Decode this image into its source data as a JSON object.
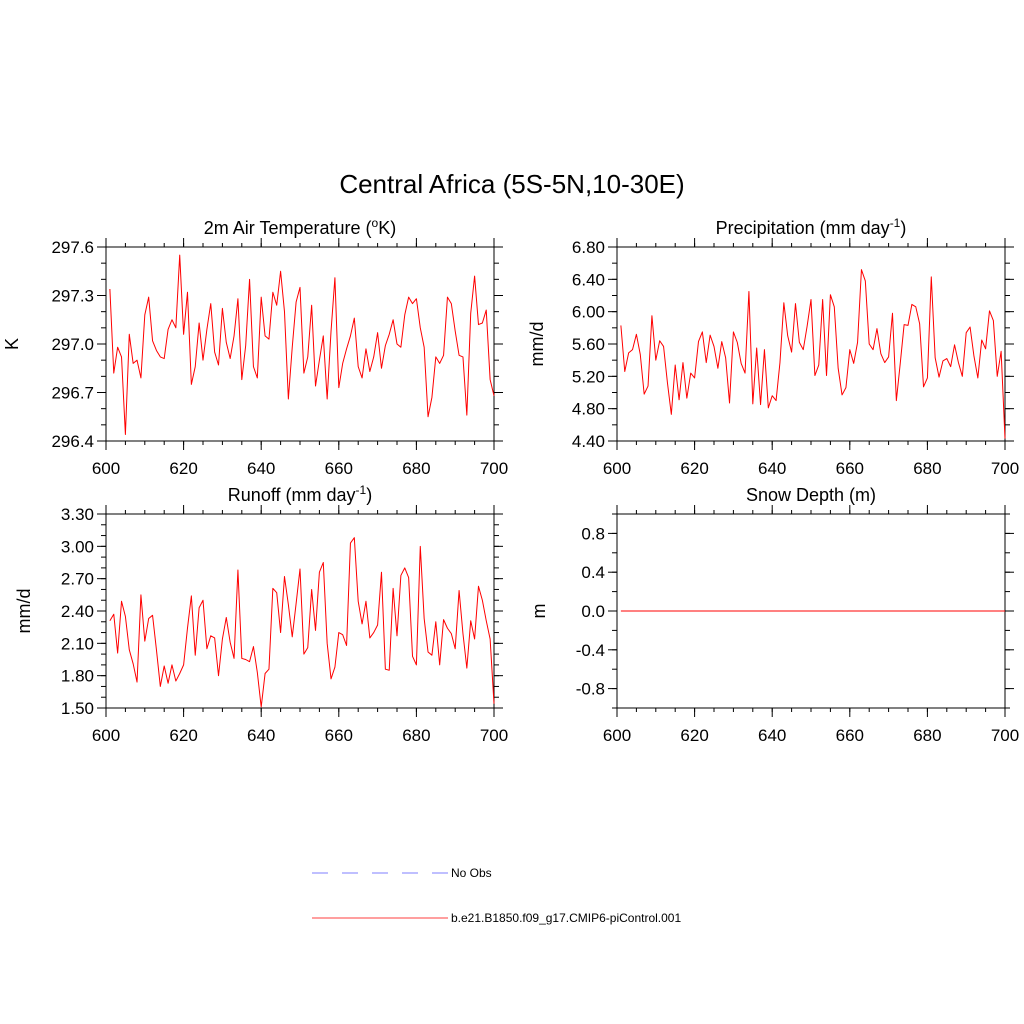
{
  "figure": {
    "title": "Central Africa (5S-5N,10-30E)"
  },
  "legend": [
    {
      "label": "No Obs",
      "color": "#9999ff",
      "dashed": true
    },
    {
      "label": "b.e21.B1850.f09_g17.CMIP6-piControl.001",
      "color": "#ff6666",
      "dashed": false
    }
  ],
  "chart_data": [
    {
      "type": "line",
      "title": "2m Air Temperature (",
      "title_sup": "o",
      "title_after": "K)",
      "ylabel": "K",
      "xlim": [
        600,
        700
      ],
      "ylim": [
        296.4,
        297.6
      ],
      "xticks": [
        600,
        620,
        640,
        660,
        680,
        700
      ],
      "xtick_labels": [
        "600",
        "620",
        "640",
        "660",
        "680",
        "700"
      ],
      "yticks": [
        296.4,
        296.7,
        297.0,
        297.3,
        297.6
      ],
      "ytick_labels": [
        "296.4",
        "296.7",
        "297.0",
        "297.3",
        "297.6"
      ],
      "yminor": 0.1,
      "series": [
        {
          "color": "#ff0000",
          "x": [
            601,
            602,
            603,
            604,
            605,
            606,
            607,
            608,
            609,
            610,
            611,
            612,
            613,
            614,
            615,
            616,
            617,
            618,
            619,
            620,
            621,
            622,
            623,
            624,
            625,
            626,
            627,
            628,
            629,
            630,
            631,
            632,
            633,
            634,
            635,
            636,
            637,
            638,
            639,
            640,
            641,
            642,
            643,
            644,
            645,
            646,
            647,
            648,
            649,
            650,
            651,
            652,
            653,
            654,
            655,
            656,
            657,
            658,
            659,
            660,
            661,
            662,
            663,
            664,
            665,
            666,
            667,
            668,
            669,
            670,
            671,
            672,
            673,
            674,
            675,
            676,
            677,
            678,
            679,
            680,
            681,
            682,
            683,
            684,
            685,
            686,
            687,
            688,
            689,
            690,
            691,
            692,
            693,
            694,
            695,
            696,
            697,
            698,
            699,
            700
          ],
          "values": [
            297.34,
            296.82,
            296.98,
            296.92,
            296.44,
            297.06,
            296.88,
            296.9,
            296.79,
            297.18,
            297.29,
            297.02,
            296.96,
            296.92,
            296.91,
            297.09,
            297.15,
            297.1,
            297.55,
            297.06,
            297.32,
            296.75,
            296.86,
            297.13,
            296.9,
            297.09,
            297.25,
            296.95,
            296.87,
            297.22,
            297.01,
            296.91,
            297.05,
            297.28,
            296.78,
            296.99,
            297.4,
            296.86,
            296.79,
            297.29,
            297.05,
            297.03,
            297.32,
            297.24,
            297.45,
            297.2,
            296.66,
            296.98,
            297.26,
            297.35,
            296.82,
            296.92,
            297.24,
            296.74,
            296.9,
            297.05,
            296.66,
            297.08,
            297.41,
            296.73,
            296.88,
            296.97,
            297.05,
            297.16,
            296.86,
            296.79,
            296.97,
            296.83,
            296.92,
            297.07,
            296.85,
            296.99,
            297.06,
            297.15,
            297.0,
            296.98,
            297.18,
            297.29,
            297.25,
            297.28,
            297.1,
            296.98,
            296.55,
            296.67,
            296.92,
            296.88,
            296.93,
            297.29,
            297.25,
            297.08,
            296.93,
            296.92,
            296.56,
            297.19,
            297.42,
            297.12,
            297.13,
            297.21,
            296.78,
            296.68
          ]
        }
      ]
    },
    {
      "type": "line",
      "title": "Precipitation (mm day",
      "title_sup": "-1",
      "title_after": ")",
      "ylabel": "mm/d",
      "xlim": [
        600,
        700
      ],
      "ylim": [
        4.4,
        6.8
      ],
      "xticks": [
        600,
        620,
        640,
        660,
        680,
        700
      ],
      "xtick_labels": [
        "600",
        "620",
        "640",
        "660",
        "680",
        "700"
      ],
      "yticks": [
        4.4,
        4.8,
        5.2,
        5.6,
        6.0,
        6.4,
        6.8
      ],
      "ytick_labels": [
        "4.40",
        "4.80",
        "5.20",
        "5.60",
        "6.00",
        "6.40",
        "6.80"
      ],
      "yminor": 0.2,
      "series": [
        {
          "color": "#ff0000",
          "x": [
            601,
            602,
            603,
            604,
            605,
            606,
            607,
            608,
            609,
            610,
            611,
            612,
            613,
            614,
            615,
            616,
            617,
            618,
            619,
            620,
            621,
            622,
            623,
            624,
            625,
            626,
            627,
            628,
            629,
            630,
            631,
            632,
            633,
            634,
            635,
            636,
            637,
            638,
            639,
            640,
            641,
            642,
            643,
            644,
            645,
            646,
            647,
            648,
            649,
            650,
            651,
            652,
            653,
            654,
            655,
            656,
            657,
            658,
            659,
            660,
            661,
            662,
            663,
            664,
            665,
            666,
            667,
            668,
            669,
            670,
            671,
            672,
            673,
            674,
            675,
            676,
            677,
            678,
            679,
            680,
            681,
            682,
            683,
            684,
            685,
            686,
            687,
            688,
            689,
            690,
            691,
            692,
            693,
            694,
            695,
            696,
            697,
            698,
            699,
            700
          ],
          "values": [
            5.83,
            5.26,
            5.49,
            5.53,
            5.72,
            5.47,
            4.98,
            5.08,
            5.95,
            5.4,
            5.64,
            5.57,
            5.12,
            4.73,
            5.34,
            4.91,
            5.37,
            4.93,
            5.24,
            5.18,
            5.63,
            5.75,
            5.37,
            5.71,
            5.57,
            5.3,
            5.63,
            5.43,
            4.87,
            5.75,
            5.62,
            5.36,
            5.24,
            6.25,
            4.86,
            5.55,
            4.85,
            5.53,
            4.81,
            4.96,
            4.9,
            5.37,
            6.11,
            5.7,
            5.5,
            6.1,
            5.62,
            5.53,
            5.82,
            6.15,
            5.21,
            5.34,
            6.15,
            5.21,
            6.21,
            6.06,
            5.3,
            4.97,
            5.06,
            5.53,
            5.36,
            5.62,
            6.52,
            6.38,
            5.6,
            5.53,
            5.79,
            5.48,
            5.37,
            5.44,
            5.98,
            4.9,
            5.36,
            5.84,
            5.83,
            6.09,
            6.06,
            5.85,
            5.07,
            5.18,
            6.43,
            5.43,
            5.19,
            5.39,
            5.42,
            5.32,
            5.59,
            5.37,
            5.2,
            5.74,
            5.81,
            5.45,
            5.18,
            5.65,
            5.54,
            6.01,
            5.89,
            5.2,
            5.51,
            4.43
          ]
        }
      ]
    },
    {
      "type": "line",
      "title": "Runoff (mm day",
      "title_sup": "-1",
      "title_after": ")",
      "ylabel": "mm/d",
      "xlim": [
        600,
        700
      ],
      "ylim": [
        1.5,
        3.3
      ],
      "xticks": [
        600,
        620,
        640,
        660,
        680,
        700
      ],
      "xtick_labels": [
        "600",
        "620",
        "640",
        "660",
        "680",
        "700"
      ],
      "yticks": [
        1.5,
        1.8,
        2.1,
        2.4,
        2.7,
        3.0,
        3.3
      ],
      "ytick_labels": [
        "1.50",
        "1.80",
        "2.10",
        "2.40",
        "2.70",
        "3.00",
        "3.30"
      ],
      "yminor": 0.1,
      "series": [
        {
          "color": "#ff0000",
          "x": [
            601,
            602,
            603,
            604,
            605,
            606,
            607,
            608,
            609,
            610,
            611,
            612,
            613,
            614,
            615,
            616,
            617,
            618,
            619,
            620,
            621,
            622,
            623,
            624,
            625,
            626,
            627,
            628,
            629,
            630,
            631,
            632,
            633,
            634,
            635,
            636,
            637,
            638,
            639,
            640,
            641,
            642,
            643,
            644,
            645,
            646,
            647,
            648,
            649,
            650,
            651,
            652,
            653,
            654,
            655,
            656,
            657,
            658,
            659,
            660,
            661,
            662,
            663,
            664,
            665,
            666,
            667,
            668,
            669,
            670,
            671,
            672,
            673,
            674,
            675,
            676,
            677,
            678,
            679,
            680,
            681,
            682,
            683,
            684,
            685,
            686,
            687,
            688,
            689,
            690,
            691,
            692,
            693,
            694,
            695,
            696,
            697,
            698,
            699,
            700
          ],
          "values": [
            2.31,
            2.37,
            2.01,
            2.49,
            2.35,
            2.04,
            1.91,
            1.74,
            2.55,
            2.12,
            2.33,
            2.36,
            2.04,
            1.7,
            1.89,
            1.73,
            1.9,
            1.75,
            1.82,
            1.9,
            2.24,
            2.54,
            1.99,
            2.43,
            2.5,
            2.05,
            2.17,
            2.15,
            1.8,
            2.14,
            2.34,
            2.11,
            1.96,
            2.78,
            1.96,
            1.95,
            1.93,
            2.07,
            1.83,
            1.51,
            1.82,
            1.86,
            2.61,
            2.57,
            2.2,
            2.72,
            2.46,
            2.16,
            2.47,
            2.79,
            2.0,
            2.06,
            2.6,
            2.22,
            2.76,
            2.85,
            2.1,
            1.77,
            1.88,
            2.2,
            2.18,
            2.08,
            3.03,
            3.08,
            2.49,
            2.28,
            2.49,
            2.15,
            2.2,
            2.27,
            2.76,
            1.86,
            1.85,
            2.61,
            2.17,
            2.73,
            2.8,
            2.71,
            1.98,
            1.9,
            3.0,
            2.33,
            2.02,
            1.99,
            2.3,
            1.9,
            2.32,
            2.24,
            2.19,
            2.05,
            2.59,
            2.19,
            1.87,
            2.31,
            2.14,
            2.63,
            2.5,
            2.31,
            2.14,
            1.54
          ]
        }
      ]
    },
    {
      "type": "line",
      "title": "Snow Depth (m)",
      "ylabel": "m",
      "xlim": [
        600,
        700
      ],
      "ylim": [
        -1.0,
        1.0
      ],
      "xticks": [
        600,
        620,
        640,
        660,
        680,
        700
      ],
      "xtick_labels": [
        "600",
        "620",
        "640",
        "660",
        "680",
        "700"
      ],
      "yticks": [
        -0.8,
        -0.4,
        0.0,
        0.4,
        0.8
      ],
      "ytick_labels": [
        "-0.8",
        "-0.4",
        "0.0",
        "0.4",
        "0.8"
      ],
      "yminor": 0.2,
      "series": [
        {
          "color": "#ff0000",
          "x": [
            601,
            700
          ],
          "values": [
            0.0,
            0.0
          ]
        }
      ]
    }
  ]
}
